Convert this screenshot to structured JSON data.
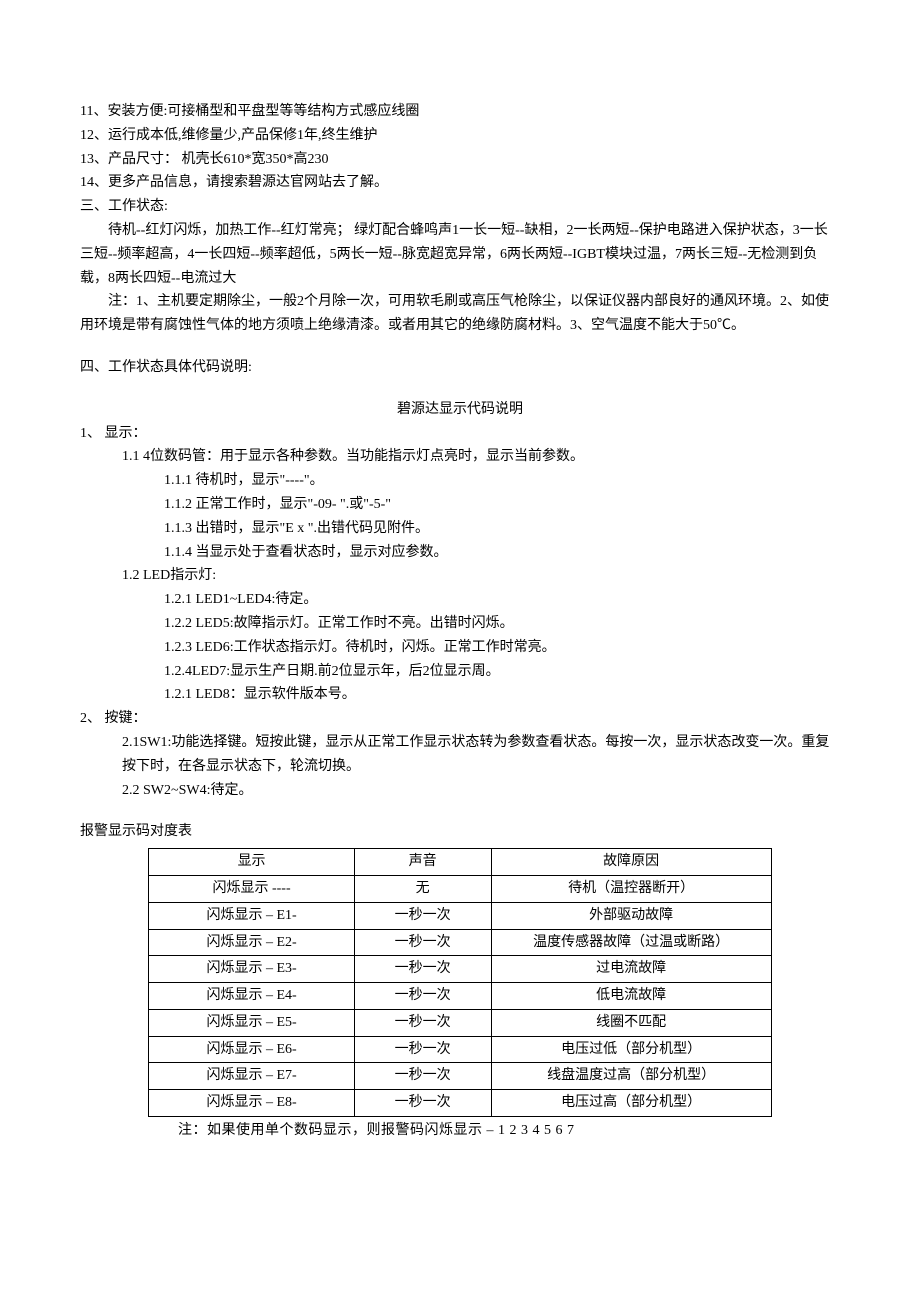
{
  "lines": {
    "l11": "11、安装方便:可接桶型和平盘型等等结构方式感应线圈",
    "l12": "12、运行成本低,维修量少,产品保修1年,终生维护",
    "l13": "13、产品尺寸：  机壳长610*宽350*高230",
    "l14": "14、更多产品信息，请搜索碧源达官网站去了解。"
  },
  "section3": {
    "title": "三、工作状态:",
    "p1": "待机--红灯闪烁，加热工作--红灯常亮；  绿灯配合蜂鸣声1一长一短--缺相，2一长两短--保护电路进入保护状态，3一长三短--频率超高，4一长四短--频率超低，5两长一短--脉宽超宽异常，6两长两短--IGBT模块过温，7两长三短--无检测到负载，8两长四短--电流过大",
    "p2": "注：1、主机要定期除尘，一般2个月除一次，可用软毛刷或高压气枪除尘，以保证仪器内部良好的通风环境。2、如使用环境是带有腐蚀性气体的地方须喷上绝缘清漆。或者用其它的绝缘防腐材料。3、空气温度不能大于50℃。"
  },
  "section4": {
    "title": "四、工作状态具体代码说明:",
    "subtitle": "碧源达显示代码说明",
    "s1": {
      "head": "1、   显示：",
      "p11": "1.1 4位数码管：用于显示各种参数。当功能指示灯点亮时，显示当前参数。",
      "p111": "1.1.1  待机时，显示\"----\"。",
      "p112": "1.1.2  正常工作时，显示\"-09- \".或\"-5-\"",
      "p113": "1.1.3  出错时，显示\"E  x  \".出错代码见附件。",
      "p114": "1.1.4  当显示处于查看状态时，显示对应参数。",
      "p12": "1.2 LED指示灯:",
      "p121": "1.2.1 LED1~LED4:待定。",
      "p122": "1.2.2 LED5:故障指示灯。正常工作时不亮。出错时闪烁。",
      "p123": "1.2.3 LED6:工作状态指示灯。待机时，闪烁。正常工作时常亮。",
      "p124": "1.2.4LED7:显示生产日期.前2位显示年，后2位显示周。",
      "p125": "1.2.1  LED8：显示软件版本号。"
    },
    "s2": {
      "head": "2、   按键：",
      "p21": "2.1SW1:功能选择键。短按此键，显示从正常工作显示状态转为参数查看状态。每按一次，显示状态改变一次。重复按下时，在各显示状态下，轮流切换。",
      "p22": "2.2 SW2~SW4:待定。"
    }
  },
  "tableSection": {
    "title": "报警显示码对度表",
    "columns": [
      "显示",
      "声音",
      "故障原因"
    ],
    "rows": [
      [
        "闪烁显示 ----",
        "无",
        "待机（温控器断开）"
      ],
      [
        "闪烁显示 – E1-",
        "一秒一次",
        "外部驱动故障"
      ],
      [
        "闪烁显示 – E2-",
        "一秒一次",
        "温度传感器故障（过温或断路）"
      ],
      [
        "闪烁显示 – E3-",
        "一秒一次",
        "过电流故障"
      ],
      [
        "闪烁显示 – E4-",
        "一秒一次",
        "低电流故障"
      ],
      [
        "闪烁显示 – E5-",
        "一秒一次",
        "线圈不匹配"
      ],
      [
        "闪烁显示 – E6-",
        "一秒一次",
        "电压过低（部分机型）"
      ],
      [
        "闪烁显示 – E7-",
        "一秒一次",
        "线盘温度过高（部分机型）"
      ],
      [
        "闪烁显示 – E8-",
        "一秒一次",
        "电压过高（部分机型）"
      ]
    ],
    "footnote": "注：如果使用单个数码显示，则报警码闪烁显示  –  1  2  3  4  5  6  7"
  },
  "tableStyle": {
    "col_widths_pct": [
      33,
      22,
      45
    ],
    "border_color": "#000000",
    "background_color": "#ffffff",
    "font_size_pt": 10.5
  }
}
